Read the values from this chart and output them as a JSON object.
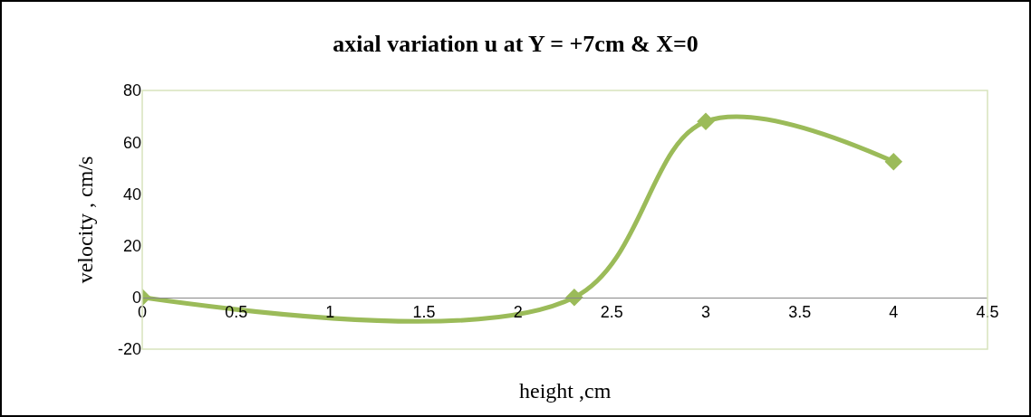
{
  "chart_data": {
    "type": "line",
    "title": "axial variation u at Y = +7cm & X=0",
    "xlabel": "height ,cm",
    "ylabel": "velocity , cm/s",
    "x": [
      0,
      2.3,
      3,
      4
    ],
    "series": [
      {
        "color": "#9bbb59",
        "values": [
          0,
          0,
          68,
          52.5
        ]
      }
    ],
    "xlim": [
      0,
      4.5
    ],
    "xticks": [
      0,
      0.5,
      1,
      1.5,
      2,
      2.5,
      3,
      3.5,
      4,
      4.5
    ],
    "ylim": [
      -20,
      80
    ],
    "yticks": [
      -20,
      0,
      20,
      40,
      60,
      80
    ],
    "grid": false,
    "legend": false,
    "marker": "diamond",
    "line_style": "solid"
  }
}
